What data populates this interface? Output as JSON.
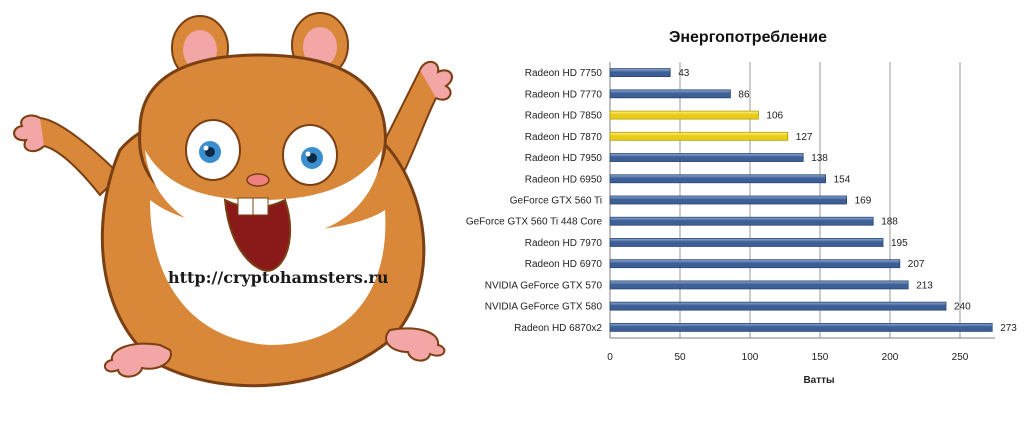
{
  "watermark": {
    "url": "http://cryptohamsters.ru"
  },
  "colors": {
    "bar_default": "#3d5f96",
    "bar_highlight": "#e8cc1a",
    "grid": "#9a9a9a",
    "axis": "#7f7f7f"
  },
  "chart_data": {
    "type": "bar",
    "orientation": "horizontal",
    "title": "Энергопотребление",
    "xlabel": "Ватты",
    "ylabel": "",
    "xlim": [
      0,
      275
    ],
    "xticks": [
      0,
      50,
      100,
      150,
      200,
      250
    ],
    "grid": true,
    "legend": "none",
    "categories": [
      "Radeon HD 7750",
      "Radeon HD 7770",
      "Radeon HD 7850",
      "Radeon HD 7870",
      "Radeon HD 7950",
      "Radeon HD 6950",
      "GeForce GTX 560 Ti",
      "GeForce GTX 560 Ti 448 Core",
      "Radeon HD 7970",
      "Radeon HD 6970",
      "NVIDIA GeForce GTX 570",
      "NVIDIA GeForce GTX 580",
      "Radeon HD 6870x2"
    ],
    "values": [
      43,
      86,
      106,
      127,
      138,
      154,
      169,
      188,
      195,
      207,
      213,
      240,
      273
    ],
    "highlighted": [
      "Radeon HD 7850",
      "Radeon HD 7870"
    ]
  }
}
